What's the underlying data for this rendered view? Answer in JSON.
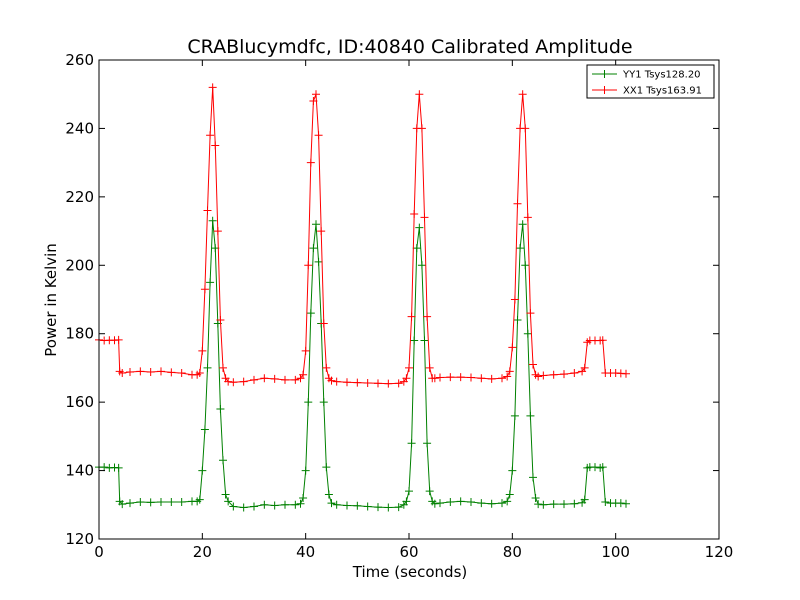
{
  "chart_data": {
    "type": "line",
    "title": "CRABlucymdfc, ID:40840 Calibrated Amplitude",
    "xlabel": "Time (seconds)",
    "ylabel": "Power in Kelvin",
    "xlim": [
      0,
      120
    ],
    "ylim": [
      120,
      260
    ],
    "xticks": [
      "0",
      "20",
      "40",
      "60",
      "80",
      "100",
      "120"
    ],
    "yticks": [
      "120",
      "140",
      "160",
      "180",
      "200",
      "220",
      "240",
      "260"
    ],
    "grid": false,
    "legend_position": "top-right",
    "marker": "plus",
    "series": [
      {
        "name": "YY1 Tsys128.20",
        "color": "#008000",
        "points": [
          [
            0,
            141
          ],
          [
            1,
            141
          ],
          [
            2,
            140.8
          ],
          [
            3,
            140.9
          ],
          [
            3.8,
            140.8
          ],
          [
            4,
            131
          ],
          [
            4.5,
            130.2
          ],
          [
            6,
            130.5
          ],
          [
            8,
            130.8
          ],
          [
            10,
            130.7
          ],
          [
            12,
            130.8
          ],
          [
            14,
            130.8
          ],
          [
            16,
            130.8
          ],
          [
            18,
            131
          ],
          [
            19,
            131
          ],
          [
            19.5,
            131.5
          ],
          [
            20,
            140
          ],
          [
            20.5,
            152
          ],
          [
            21,
            170
          ],
          [
            21.5,
            195
          ],
          [
            22,
            213
          ],
          [
            22.5,
            205
          ],
          [
            23,
            183
          ],
          [
            23.5,
            158
          ],
          [
            24,
            143
          ],
          [
            24.5,
            133
          ],
          [
            25,
            131
          ],
          [
            26,
            129.5
          ],
          [
            28,
            129.2
          ],
          [
            30,
            129.5
          ],
          [
            32,
            130
          ],
          [
            34,
            129.8
          ],
          [
            36,
            130
          ],
          [
            38,
            130
          ],
          [
            39,
            130.3
          ],
          [
            39.5,
            132
          ],
          [
            40,
            140
          ],
          [
            40.5,
            160
          ],
          [
            41,
            186
          ],
          [
            41.5,
            205
          ],
          [
            42,
            212
          ],
          [
            42.5,
            201
          ],
          [
            43,
            183
          ],
          [
            43.5,
            160
          ],
          [
            44,
            141
          ],
          [
            44.5,
            133
          ],
          [
            45,
            130.5
          ],
          [
            46,
            130
          ],
          [
            48,
            129.8
          ],
          [
            50,
            129.7
          ],
          [
            52,
            129.5
          ],
          [
            54,
            129.3
          ],
          [
            56,
            129.2
          ],
          [
            58,
            129.3
          ],
          [
            59,
            130
          ],
          [
            59.5,
            131
          ],
          [
            60,
            134
          ],
          [
            60.5,
            148
          ],
          [
            61,
            178
          ],
          [
            61.5,
            205
          ],
          [
            62,
            211
          ],
          [
            62.5,
            200
          ],
          [
            63,
            178
          ],
          [
            63.5,
            148
          ],
          [
            64,
            134
          ],
          [
            64.5,
            131
          ],
          [
            65,
            130.3
          ],
          [
            66,
            130.5
          ],
          [
            68,
            130.8
          ],
          [
            70,
            131
          ],
          [
            72,
            130.8
          ],
          [
            74,
            130.5
          ],
          [
            76,
            130.3
          ],
          [
            78,
            130.5
          ],
          [
            79,
            131
          ],
          [
            79.5,
            133
          ],
          [
            80,
            140
          ],
          [
            80.5,
            156
          ],
          [
            81,
            184
          ],
          [
            81.5,
            205
          ],
          [
            82,
            212
          ],
          [
            82.5,
            200
          ],
          [
            83,
            180
          ],
          [
            83.5,
            156
          ],
          [
            84,
            138
          ],
          [
            84.5,
            132
          ],
          [
            85,
            130.2
          ],
          [
            86,
            130
          ],
          [
            88,
            130.2
          ],
          [
            90,
            130.2
          ],
          [
            92,
            130.3
          ],
          [
            93.5,
            130.6
          ],
          [
            94,
            131.5
          ],
          [
            94.5,
            140.8
          ],
          [
            95,
            141
          ],
          [
            96,
            141
          ],
          [
            97,
            140.8
          ],
          [
            97.5,
            141
          ],
          [
            98,
            130.8
          ],
          [
            99,
            130.5
          ],
          [
            100,
            130.5
          ],
          [
            101,
            130.5
          ],
          [
            102,
            130.3
          ]
        ]
      },
      {
        "name": "XX1 Tsys163.91",
        "color": "#ff0000",
        "points": [
          [
            0,
            178.2
          ],
          [
            1,
            178
          ],
          [
            2,
            178.1
          ],
          [
            3,
            178.1
          ],
          [
            3.8,
            178.2
          ],
          [
            4,
            169
          ],
          [
            4.5,
            168.5
          ],
          [
            6,
            168.8
          ],
          [
            8,
            169
          ],
          [
            10,
            168.8
          ],
          [
            12,
            169
          ],
          [
            14,
            168.7
          ],
          [
            16,
            168.5
          ],
          [
            18,
            168
          ],
          [
            19,
            168
          ],
          [
            19.5,
            168.5
          ],
          [
            20,
            175
          ],
          [
            20.5,
            193
          ],
          [
            21,
            216
          ],
          [
            21.5,
            238
          ],
          [
            22,
            252
          ],
          [
            22.5,
            235
          ],
          [
            23,
            210
          ],
          [
            23.5,
            184
          ],
          [
            24,
            170
          ],
          [
            24.5,
            167
          ],
          [
            25,
            166
          ],
          [
            26,
            165.8
          ],
          [
            28,
            166
          ],
          [
            30,
            166.5
          ],
          [
            32,
            167
          ],
          [
            34,
            166.8
          ],
          [
            36,
            166.5
          ],
          [
            38,
            166.5
          ],
          [
            39,
            167
          ],
          [
            39.5,
            168
          ],
          [
            40,
            175
          ],
          [
            40.5,
            200
          ],
          [
            41,
            230
          ],
          [
            41.5,
            248
          ],
          [
            42,
            250
          ],
          [
            42.5,
            238
          ],
          [
            43,
            210
          ],
          [
            43.5,
            183
          ],
          [
            44,
            170
          ],
          [
            44.5,
            167
          ],
          [
            45,
            166.3
          ],
          [
            46,
            166
          ],
          [
            48,
            165.8
          ],
          [
            50,
            165.7
          ],
          [
            52,
            165.6
          ],
          [
            54,
            165.5
          ],
          [
            56,
            165.4
          ],
          [
            58,
            165.5
          ],
          [
            59,
            166
          ],
          [
            59.5,
            167
          ],
          [
            60,
            170
          ],
          [
            60.5,
            185
          ],
          [
            61,
            215
          ],
          [
            61.5,
            240
          ],
          [
            62,
            250
          ],
          [
            62.5,
            240
          ],
          [
            63,
            214
          ],
          [
            63.5,
            185
          ],
          [
            64,
            170
          ],
          [
            64.5,
            167
          ],
          [
            65,
            167
          ],
          [
            66,
            167.2
          ],
          [
            68,
            167.3
          ],
          [
            70,
            167.3
          ],
          [
            72,
            167.2
          ],
          [
            74,
            167
          ],
          [
            76,
            166.8
          ],
          [
            78,
            167
          ],
          [
            79,
            167.5
          ],
          [
            79.5,
            169
          ],
          [
            80,
            176
          ],
          [
            80.5,
            190
          ],
          [
            81,
            218
          ],
          [
            81.5,
            240
          ],
          [
            82,
            250
          ],
          [
            82.5,
            240
          ],
          [
            83,
            214
          ],
          [
            83.5,
            186
          ],
          [
            84,
            171
          ],
          [
            84.5,
            168
          ],
          [
            85,
            167.5
          ],
          [
            86,
            167.8
          ],
          [
            88,
            168
          ],
          [
            90,
            168.2
          ],
          [
            92,
            168.5
          ],
          [
            93.5,
            169
          ],
          [
            94,
            170
          ],
          [
            94.5,
            177.5
          ],
          [
            95,
            178
          ],
          [
            96,
            178
          ],
          [
            97,
            178
          ],
          [
            97.5,
            178.1
          ],
          [
            98,
            168.5
          ],
          [
            99,
            168.5
          ],
          [
            100,
            168.5
          ],
          [
            101,
            168.4
          ],
          [
            102,
            168.3
          ]
        ]
      }
    ]
  }
}
